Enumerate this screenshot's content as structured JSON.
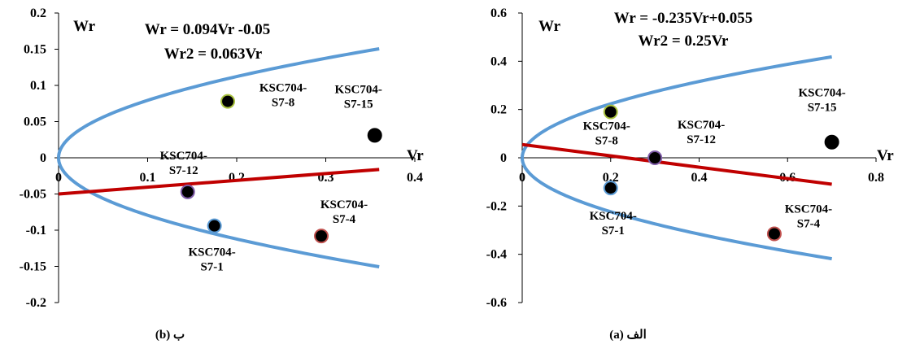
{
  "chart_data": [
    {
      "type": "scatter",
      "panel": "b",
      "caption": "(b) ب",
      "xlabel": "Vr",
      "ylabel": "Wr",
      "xlim": [
        0,
        0.4
      ],
      "ylim": [
        -0.2,
        0.2
      ],
      "x_ticks": [
        "0",
        "0.1",
        "0.2",
        "0.3",
        "0.4"
      ],
      "y_ticks": [
        "0.2",
        "0.15",
        "0.1",
        "0.05",
        "0",
        "-0.05",
        "-0.1",
        "-0.15",
        "-0.2"
      ],
      "equations": [
        "Wr = 0.094Vr -0.05",
        "Wr2 = 0.063Vr"
      ],
      "regression_line": {
        "slope": 0.094,
        "intercept": -0.05,
        "x_range": [
          0,
          0.36
        ],
        "color": "#c00000"
      },
      "parabola": {
        "coefficient": 0.063,
        "x_range": [
          0,
          0.36
        ],
        "color": "#5b9bd5"
      },
      "points": [
        {
          "label": [
            "KSC704-",
            "S7-8"
          ],
          "x": 0.19,
          "y": 0.078,
          "fill": "#000000",
          "stroke": "#a9c23f"
        },
        {
          "label": [
            "KSC704-",
            "S7-15"
          ],
          "x": 0.355,
          "y": 0.031,
          "fill": "#000000",
          "stroke": "#000000"
        },
        {
          "label": [
            "KSC704-",
            "S7-12"
          ],
          "x": 0.145,
          "y": -0.047,
          "fill": "#000000",
          "stroke": "#7f5ca8"
        },
        {
          "label": [
            "KSC704-",
            "S7-1"
          ],
          "x": 0.175,
          "y": -0.094,
          "fill": "#000000",
          "stroke": "#5b9bd5"
        },
        {
          "label": [
            "KSC704-",
            "S7-4"
          ],
          "x": 0.295,
          "y": -0.108,
          "fill": "#000000",
          "stroke": "#c0504d"
        }
      ]
    },
    {
      "type": "scatter",
      "panel": "a",
      "caption": "(a) الف",
      "xlabel": "Vr",
      "ylabel": "Wr",
      "xlim": [
        0,
        0.8
      ],
      "ylim": [
        -0.6,
        0.6
      ],
      "x_ticks": [
        "0",
        "0.2",
        "0.4",
        "0.6",
        "0.8"
      ],
      "y_ticks": [
        "0.6",
        "0.4",
        "0.2",
        "0",
        "-0.2",
        "-0.4",
        "-0.6"
      ],
      "equations": [
        "Wr = -0.235Vr+0.055",
        "Wr2 = 0.25Vr"
      ],
      "regression_line": {
        "slope": -0.235,
        "intercept": 0.055,
        "x_range": [
          0,
          0.7
        ],
        "color": "#c00000"
      },
      "parabola": {
        "coefficient": 0.25,
        "x_range": [
          0,
          0.7
        ],
        "color": "#5b9bd5"
      },
      "points": [
        {
          "label": [
            "KSC704-",
            "S7-8"
          ],
          "x": 0.2,
          "y": 0.19,
          "fill": "#000000",
          "stroke": "#a9c23f"
        },
        {
          "label": [
            "KSC704-",
            "S7-12"
          ],
          "x": 0.3,
          "y": 0.0,
          "fill": "#000000",
          "stroke": "#7f5ca8"
        },
        {
          "label": [
            "KSC704-",
            "S7-15"
          ],
          "x": 0.7,
          "y": 0.065,
          "fill": "#000000",
          "stroke": "#000000"
        },
        {
          "label": [
            "KSC704-",
            "S7-1"
          ],
          "x": 0.2,
          "y": -0.125,
          "fill": "#000000",
          "stroke": "#5b9bd5"
        },
        {
          "label": [
            "KSC704-",
            "S7-4"
          ],
          "x": 0.57,
          "y": -0.315,
          "fill": "#000000",
          "stroke": "#c0504d"
        }
      ]
    }
  ]
}
